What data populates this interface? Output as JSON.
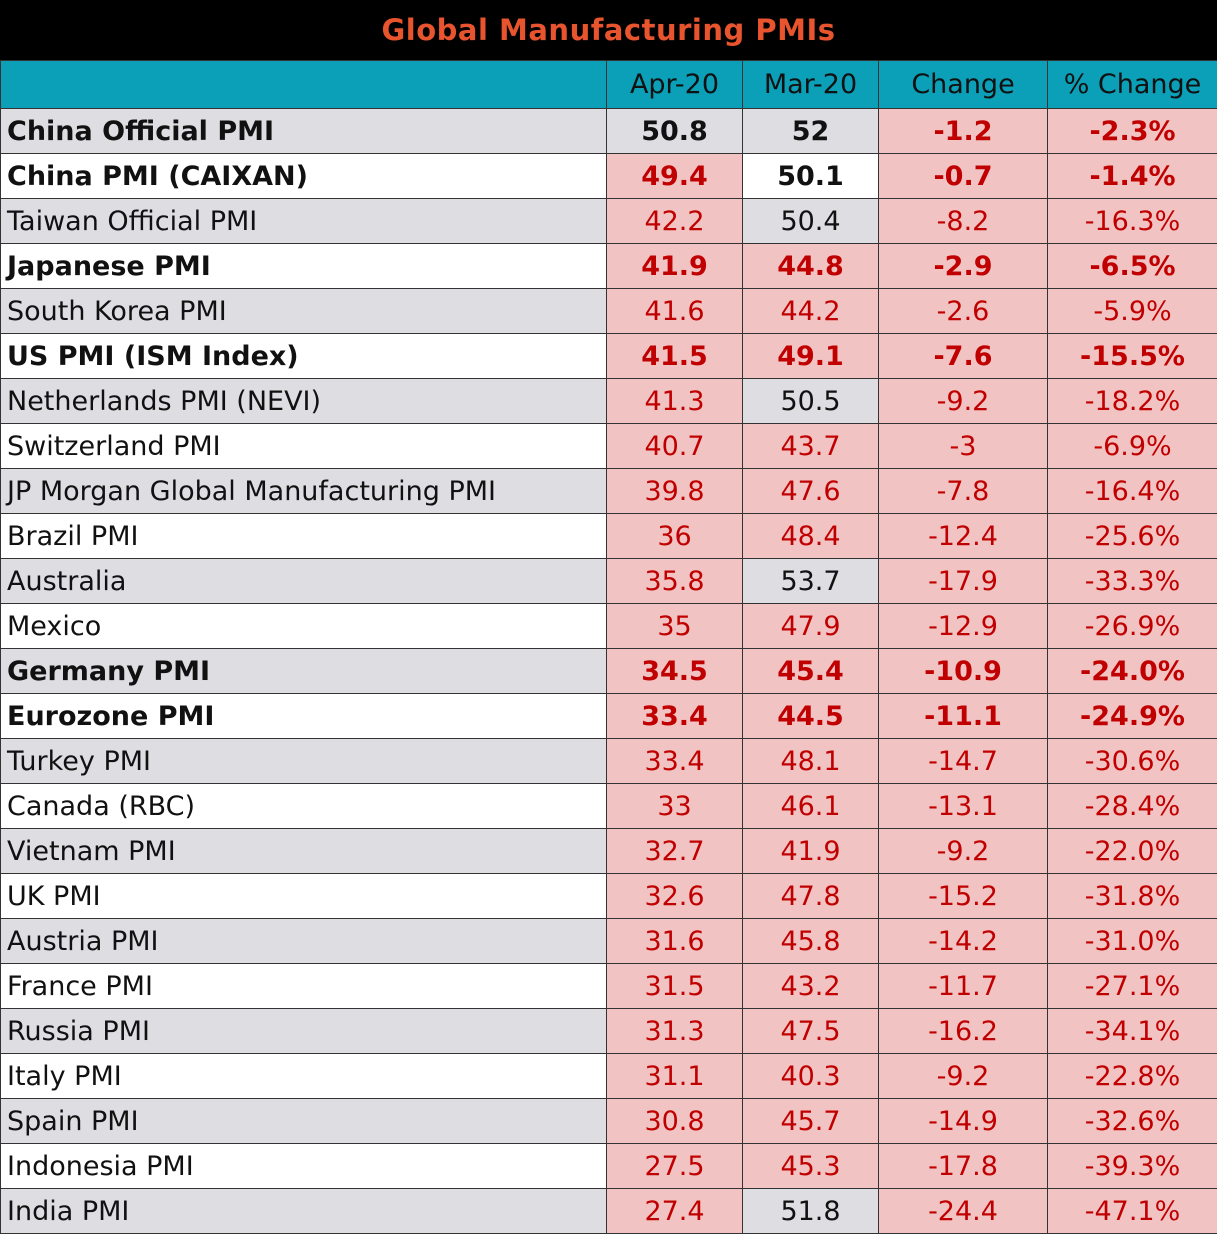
{
  "title": "Global Manufacturing PMIs",
  "columns": [
    "Apr-20",
    "Mar-20",
    "Change",
    "% Change"
  ],
  "rows": [
    {
      "name": "China Official PMI",
      "apr": "50.8",
      "mar": "52",
      "change": "-1.2",
      "pct": "-2.3%",
      "bold": true,
      "apr_bg": "gray",
      "mar_bg": "gray"
    },
    {
      "name": "China PMI (CAIXAN)",
      "apr": "49.4",
      "mar": "50.1",
      "change": "-0.7",
      "pct": "-1.4%",
      "bold": true,
      "apr_bg": "red",
      "mar_bg": "white"
    },
    {
      "name": "Taiwan Official PMI",
      "apr": "42.2",
      "mar": "50.4",
      "change": "-8.2",
      "pct": "-16.3%",
      "bold": false,
      "apr_bg": "red",
      "mar_bg": "gray"
    },
    {
      "name": "Japanese PMI",
      "apr": "41.9",
      "mar": "44.8",
      "change": "-2.9",
      "pct": "-6.5%",
      "bold": true,
      "apr_bg": "red",
      "mar_bg": "red"
    },
    {
      "name": "South Korea PMI",
      "apr": "41.6",
      "mar": "44.2",
      "change": "-2.6",
      "pct": "-5.9%",
      "bold": false,
      "apr_bg": "red",
      "mar_bg": "red"
    },
    {
      "name": "US PMI (ISM Index)",
      "apr": "41.5",
      "mar": "49.1",
      "change": "-7.6",
      "pct": "-15.5%",
      "bold": true,
      "apr_bg": "red",
      "mar_bg": "red"
    },
    {
      "name": "Netherlands PMI (NEVI)",
      "apr": "41.3",
      "mar": "50.5",
      "change": "-9.2",
      "pct": "-18.2%",
      "bold": false,
      "apr_bg": "red",
      "mar_bg": "gray"
    },
    {
      "name": "Switzerland PMI",
      "apr": "40.7",
      "mar": "43.7",
      "change": "-3",
      "pct": "-6.9%",
      "bold": false,
      "apr_bg": "red",
      "mar_bg": "red"
    },
    {
      "name": "JP Morgan Global Manufacturing PMI",
      "apr": "39.8",
      "mar": "47.6",
      "change": "-7.8",
      "pct": "-16.4%",
      "bold": false,
      "apr_bg": "red",
      "mar_bg": "red"
    },
    {
      "name": "Brazil PMI",
      "apr": "36",
      "mar": "48.4",
      "change": "-12.4",
      "pct": "-25.6%",
      "bold": false,
      "apr_bg": "red",
      "mar_bg": "red"
    },
    {
      "name": "Australia",
      "apr": "35.8",
      "mar": "53.7",
      "change": "-17.9",
      "pct": "-33.3%",
      "bold": false,
      "apr_bg": "red",
      "mar_bg": "gray"
    },
    {
      "name": "Mexico",
      "apr": "35",
      "mar": "47.9",
      "change": "-12.9",
      "pct": "-26.9%",
      "bold": false,
      "apr_bg": "red",
      "mar_bg": "red"
    },
    {
      "name": "Germany PMI",
      "apr": "34.5",
      "mar": "45.4",
      "change": "-10.9",
      "pct": "-24.0%",
      "bold": true,
      "apr_bg": "red",
      "mar_bg": "red"
    },
    {
      "name": "Eurozone PMI",
      "apr": "33.4",
      "mar": "44.5",
      "change": "-11.1",
      "pct": "-24.9%",
      "bold": true,
      "apr_bg": "red",
      "mar_bg": "red"
    },
    {
      "name": "Turkey PMI",
      "apr": "33.4",
      "mar": "48.1",
      "change": "-14.7",
      "pct": "-30.6%",
      "bold": false,
      "apr_bg": "red",
      "mar_bg": "red"
    },
    {
      "name": "Canada (RBC)",
      "apr": "33",
      "mar": "46.1",
      "change": "-13.1",
      "pct": "-28.4%",
      "bold": false,
      "apr_bg": "red",
      "mar_bg": "red"
    },
    {
      "name": "Vietnam PMI",
      "apr": "32.7",
      "mar": "41.9",
      "change": "-9.2",
      "pct": "-22.0%",
      "bold": false,
      "apr_bg": "red",
      "mar_bg": "red"
    },
    {
      "name": "UK PMI",
      "apr": "32.6",
      "mar": "47.8",
      "change": "-15.2",
      "pct": "-31.8%",
      "bold": false,
      "apr_bg": "red",
      "mar_bg": "red"
    },
    {
      "name": "Austria PMI",
      "apr": "31.6",
      "mar": "45.8",
      "change": "-14.2",
      "pct": "-31.0%",
      "bold": false,
      "apr_bg": "red",
      "mar_bg": "red"
    },
    {
      "name": "France PMI",
      "apr": "31.5",
      "mar": "43.2",
      "change": "-11.7",
      "pct": "-27.1%",
      "bold": false,
      "apr_bg": "red",
      "mar_bg": "red"
    },
    {
      "name": "Russia PMI",
      "apr": "31.3",
      "mar": "47.5",
      "change": "-16.2",
      "pct": "-34.1%",
      "bold": false,
      "apr_bg": "red",
      "mar_bg": "red"
    },
    {
      "name": "Italy PMI",
      "apr": "31.1",
      "mar": "40.3",
      "change": "-9.2",
      "pct": "-22.8%",
      "bold": false,
      "apr_bg": "red",
      "mar_bg": "red"
    },
    {
      "name": "Spain PMI",
      "apr": "30.8",
      "mar": "45.7",
      "change": "-14.9",
      "pct": "-32.6%",
      "bold": false,
      "apr_bg": "red",
      "mar_bg": "red"
    },
    {
      "name": "Indonesia PMI",
      "apr": "27.5",
      "mar": "45.3",
      "change": "-17.8",
      "pct": "-39.3%",
      "bold": false,
      "apr_bg": "red",
      "mar_bg": "red"
    },
    {
      "name": "India PMI",
      "apr": "27.4",
      "mar": "51.8",
      "change": "-24.4",
      "pct": "-47.1%",
      "bold": false,
      "apr_bg": "red",
      "mar_bg": "gray"
    }
  ]
}
